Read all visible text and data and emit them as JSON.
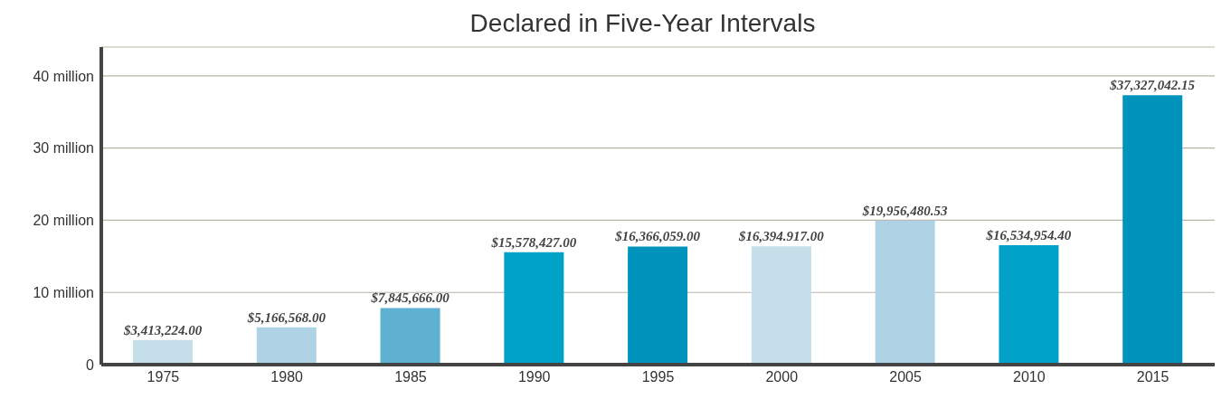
{
  "chart_data": {
    "type": "bar",
    "title": "Declared in Five-Year Intervals",
    "categories": [
      "1975",
      "1980",
      "1985",
      "1990",
      "1995",
      "2000",
      "2005",
      "2010",
      "2015"
    ],
    "values": [
      3413224.0,
      5166568.0,
      7845666.0,
      15578427.0,
      16366059.0,
      16394917.0,
      19956480.53,
      16534954.4,
      37327042.15
    ],
    "colors": [
      "#c5dfea",
      "#afd3e5",
      "#5eb1d0",
      "#00a3c7",
      "#0093bc",
      "#c5dfea",
      "#afd3e5",
      "#00a3c7",
      "#0093bc"
    ],
    "value_labels": [
      "$3,413,224.00",
      "$5,166,568.00",
      "$7,845,666.00",
      "$15,578,427.00",
      "$16,366,059.00",
      "$16,394.917.00",
      "$19,956,480.53",
      "$16,534,954.40",
      "$37,327,042.15"
    ],
    "ylim": [
      0,
      44000000
    ],
    "yticks": [
      {
        "value": 0,
        "label": "0"
      },
      {
        "value": 10000000,
        "label": "10 million"
      },
      {
        "value": 20000000,
        "label": "20 million"
      },
      {
        "value": 30000000,
        "label": "30 million"
      },
      {
        "value": 40000000,
        "label": "40 million"
      }
    ],
    "grid": "y",
    "legend": false
  }
}
